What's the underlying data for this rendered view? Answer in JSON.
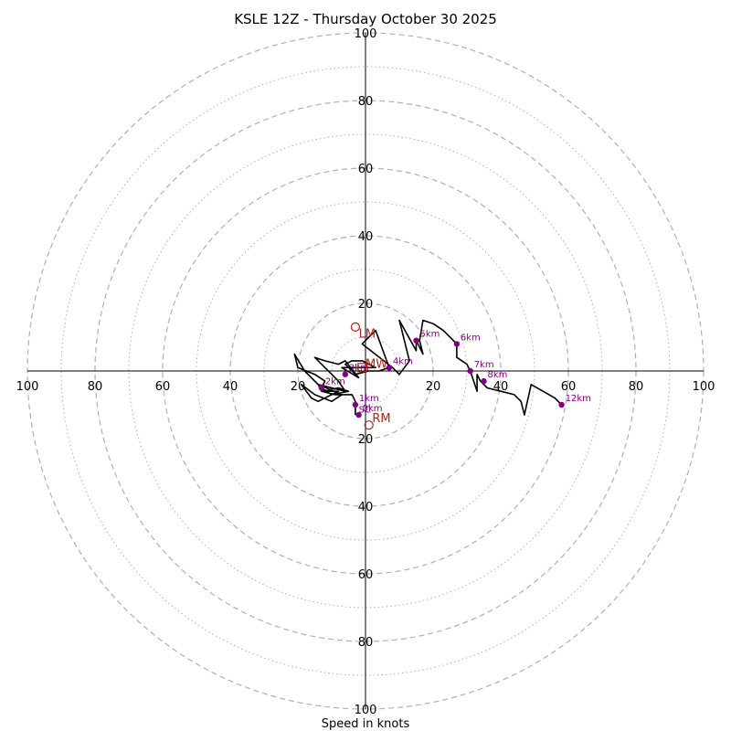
{
  "chart_data": {
    "type": "hodograph",
    "title": "KSLE 12Z - Thursday October 30 2025",
    "xlabel": "Speed in knots",
    "ring_max": 100,
    "major_rings": [
      20,
      40,
      60,
      80,
      100
    ],
    "minor_rings": [
      10,
      30,
      50,
      70,
      90
    ],
    "x_ticks": [
      {
        "value": -100,
        "label": "100"
      },
      {
        "value": -80,
        "label": "80"
      },
      {
        "value": -60,
        "label": "60"
      },
      {
        "value": -40,
        "label": "40"
      },
      {
        "value": -20,
        "label": "20"
      },
      {
        "value": 20,
        "label": "20"
      },
      {
        "value": 40,
        "label": "40"
      },
      {
        "value": 60,
        "label": "60"
      },
      {
        "value": 80,
        "label": "80"
      },
      {
        "value": 100,
        "label": "100"
      }
    ],
    "y_ticks": [
      {
        "value": 100,
        "label": "100"
      },
      {
        "value": 80,
        "label": "80"
      },
      {
        "value": 60,
        "label": "60"
      },
      {
        "value": 40,
        "label": "40"
      },
      {
        "value": 20,
        "label": "20"
      },
      {
        "value": -20,
        "label": "20"
      },
      {
        "value": -40,
        "label": "40"
      },
      {
        "value": -60,
        "label": "60"
      },
      {
        "value": -80,
        "label": "80"
      },
      {
        "value": -100,
        "label": "100"
      }
    ],
    "trace": [
      [
        -3,
        -13
      ],
      [
        -3,
        -9
      ],
      [
        -4,
        -7
      ],
      [
        -9,
        -7
      ],
      [
        -13,
        -6
      ],
      [
        -8,
        -5
      ],
      [
        -5,
        -6
      ],
      [
        -10,
        -7
      ],
      [
        -14,
        -9
      ],
      [
        -16,
        -8
      ],
      [
        -19,
        -4
      ],
      [
        -15,
        -7
      ],
      [
        -10,
        -9
      ],
      [
        -7,
        -7
      ],
      [
        -14,
        -4
      ],
      [
        -13,
        -6
      ],
      [
        -8,
        -6
      ],
      [
        -10,
        -7
      ],
      [
        -13,
        -5
      ],
      [
        -12,
        -3
      ],
      [
        -15,
        -1
      ],
      [
        -20,
        1
      ],
      [
        -21,
        5
      ],
      [
        -18,
        0
      ],
      [
        -14,
        -4
      ],
      [
        -6,
        -6
      ],
      [
        -8,
        -3
      ],
      [
        -15,
        4
      ],
      [
        -12,
        3
      ],
      [
        -8,
        2
      ],
      [
        -6,
        3
      ],
      [
        -2,
        -2
      ],
      [
        -7,
        1
      ],
      [
        3,
        1
      ],
      [
        -1,
        3
      ],
      [
        -4,
        3
      ],
      [
        -6,
        2
      ],
      [
        -3,
        -1
      ],
      [
        1,
        0
      ],
      [
        4,
        0
      ],
      [
        7,
        1
      ],
      [
        3,
        12
      ],
      [
        -1,
        8
      ],
      [
        8,
        1
      ],
      [
        10,
        -1
      ],
      [
        13,
        3
      ],
      [
        10,
        15
      ],
      [
        15,
        6
      ],
      [
        15,
        9
      ],
      [
        17,
        5
      ],
      [
        16,
        9
      ],
      [
        17,
        15
      ],
      [
        20,
        14
      ],
      [
        23,
        12
      ],
      [
        26,
        9
      ],
      [
        27,
        8
      ],
      [
        27,
        4
      ],
      [
        30,
        2
      ],
      [
        31,
        0
      ],
      [
        33,
        -6
      ],
      [
        33,
        -1
      ],
      [
        34,
        -3
      ],
      [
        36,
        -5
      ],
      [
        40,
        -6
      ],
      [
        44,
        -7
      ],
      [
        46,
        -9
      ],
      [
        47,
        -13
      ],
      [
        49,
        -4
      ],
      [
        56,
        -8
      ],
      [
        58,
        -10
      ]
    ],
    "height_markers": [
      {
        "label": "0km",
        "u": -2,
        "v": -13
      },
      {
        "label": "1km",
        "u": -3,
        "v": -10
      },
      {
        "label": "2km",
        "u": -13,
        "v": -5
      },
      {
        "label": "3km",
        "u": -6,
        "v": -1
      },
      {
        "label": "4km",
        "u": 7,
        "v": 1
      },
      {
        "label": "5km",
        "u": 15,
        "v": 9
      },
      {
        "label": "6km",
        "u": 27,
        "v": 8
      },
      {
        "label": "7km",
        "u": 31,
        "v": 0
      },
      {
        "label": "8km",
        "u": 35,
        "v": -3
      },
      {
        "label": "12km",
        "u": 58,
        "v": -10
      }
    ],
    "storm_motion": [
      {
        "label": "LM",
        "u": -3,
        "v": 13,
        "shape": "circle",
        "dx": 1,
        "dy": -2
      },
      {
        "label": "RM",
        "u": 1,
        "v": -16,
        "shape": "circle",
        "dx": 1,
        "dy": 2
      },
      {
        "label": "MW",
        "u": -1,
        "v": 1,
        "shape": "square",
        "dx": 1,
        "dy": 1
      }
    ],
    "sc_label": "SC",
    "sc_position": {
      "u": -2,
      "v": -11
    },
    "colors": {
      "trace": "#000000",
      "marker": "#800080",
      "storm": "#b22222",
      "ring": "#b0b0b0",
      "axis": "#000000"
    }
  }
}
